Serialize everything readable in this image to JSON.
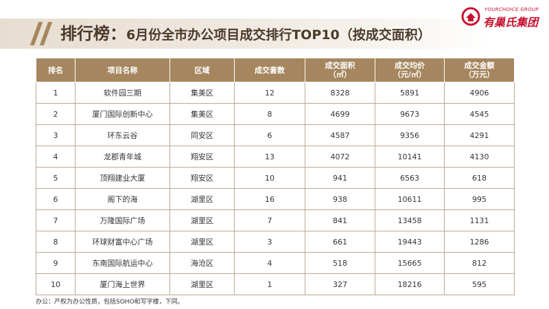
{
  "header": {
    "title_main": "排行榜：",
    "title_sub": "6月份全市办公项目成交排行TOP10（按成交面积）"
  },
  "logo": {
    "en": "YOURCHOICE GROUP",
    "cn": "有巢氏集团",
    "icon": "house-icon",
    "color": "#c8102e"
  },
  "colors": {
    "accent": "#a5865e",
    "title": "#4a3a2a"
  },
  "table": {
    "columns": [
      {
        "line1": "排名",
        "line2": ""
      },
      {
        "line1": "项目名称",
        "line2": ""
      },
      {
        "line1": "区域",
        "line2": ""
      },
      {
        "line1": "成交套数",
        "line2": ""
      },
      {
        "line1": "成交面积",
        "line2": "（㎡）"
      },
      {
        "line1": "成交均价",
        "line2": "（元/㎡）"
      },
      {
        "line1": "成交金额",
        "line2": "（万元）"
      }
    ],
    "rows": [
      [
        "1",
        "软件园三期",
        "集美区",
        "12",
        "8328",
        "5891",
        "4906"
      ],
      [
        "2",
        "厦门国际创新中心",
        "集美区",
        "8",
        "4699",
        "9673",
        "4545"
      ],
      [
        "3",
        "环东云谷",
        "同安区",
        "6",
        "4587",
        "9356",
        "4291"
      ],
      [
        "4",
        "龙郡青年城",
        "翔安区",
        "13",
        "4072",
        "10141",
        "4130"
      ],
      [
        "5",
        "顶翔建业大厦",
        "翔安区",
        "10",
        "941",
        "6563",
        "618"
      ],
      [
        "6",
        "阁下的海",
        "湖里区",
        "16",
        "938",
        "10611",
        "995"
      ],
      [
        "7",
        "万隆国际广场",
        "湖里区",
        "7",
        "841",
        "13458",
        "1131"
      ],
      [
        "8",
        "环球财富中心广场",
        "湖里区",
        "3",
        "661",
        "19443",
        "1286"
      ],
      [
        "9",
        "东南国际航运中心",
        "海沧区",
        "4",
        "518",
        "15665",
        "812"
      ],
      [
        "10",
        "厦门海上世界",
        "湖里区",
        "1",
        "327",
        "18216",
        "595"
      ]
    ]
  },
  "footnote": "办公：产权为办公性质，包括SOHO和写字楼，下同。"
}
